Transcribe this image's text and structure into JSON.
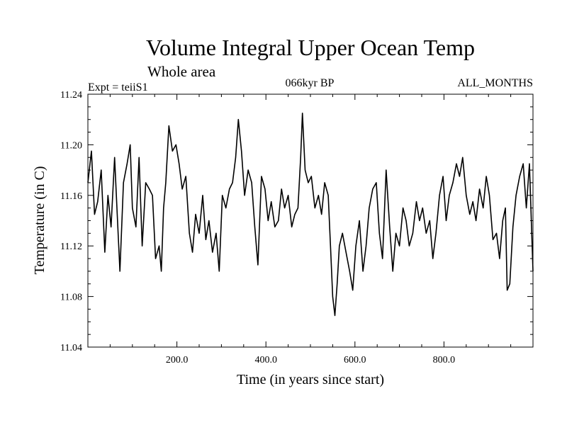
{
  "chart_data": {
    "type": "line",
    "title": "Volume Integral Upper Ocean Temp",
    "subtitle": "Whole area",
    "experiment": "Expt = teiiS1",
    "period": "066kyr BP",
    "months": "ALL_MONTHS",
    "xlabel": "Time (in years since start)",
    "ylabel": "Temperature (in C)",
    "xlim": [
      0,
      1000
    ],
    "ylim": [
      11.04,
      11.24
    ],
    "x_ticks": [
      200,
      400,
      600,
      800
    ],
    "x_tick_labels": [
      "200.0",
      "400.0",
      "600.0",
      "800.0"
    ],
    "y_ticks": [
      11.04,
      11.08,
      11.12,
      11.16,
      11.2,
      11.24
    ],
    "y_tick_labels": [
      "11.04",
      "11.08",
      "11.12",
      "11.16",
      "11.20",
      "11.24"
    ],
    "grid": false,
    "legend": "none",
    "series": [
      {
        "x": [
          0,
          8,
          15,
          22,
          30,
          38,
          45,
          52,
          60,
          66,
          72,
          80,
          88,
          95,
          100,
          108,
          115,
          122,
          130,
          138,
          145,
          152,
          160,
          165,
          170,
          175,
          182,
          190,
          198,
          205,
          212,
          220,
          228,
          235,
          242,
          250,
          258,
          265,
          272,
          280,
          288,
          295,
          302,
          310,
          318,
          325,
          332,
          338,
          345,
          352,
          360,
          368,
          375,
          382,
          390,
          398,
          405,
          412,
          420,
          428,
          435,
          442,
          450,
          458,
          465,
          472,
          478,
          482,
          488,
          495,
          502,
          510,
          518,
          525,
          532,
          540,
          545,
          550,
          555,
          560,
          565,
          572,
          580,
          588,
          595,
          602,
          610,
          618,
          625,
          632,
          640,
          648,
          655,
          662,
          670,
          678,
          685,
          692,
          700,
          708,
          715,
          722,
          730,
          738,
          745,
          752,
          760,
          768,
          775,
          782,
          790,
          798,
          805,
          812,
          820,
          828,
          835,
          842,
          850,
          858,
          865,
          872,
          880,
          888,
          895,
          902,
          910,
          918,
          925,
          932,
          938,
          942,
          948,
          955,
          962,
          970,
          978,
          985,
          992,
          1000
        ],
        "values": [
          11.17,
          11.195,
          11.145,
          11.155,
          11.18,
          11.115,
          11.16,
          11.135,
          11.19,
          11.145,
          11.1,
          11.17,
          11.185,
          11.2,
          11.15,
          11.135,
          11.19,
          11.12,
          11.17,
          11.165,
          11.16,
          11.11,
          11.12,
          11.1,
          11.15,
          11.17,
          11.215,
          11.195,
          11.2,
          11.185,
          11.165,
          11.175,
          11.13,
          11.115,
          11.145,
          11.13,
          11.16,
          11.125,
          11.14,
          11.115,
          11.13,
          11.1,
          11.16,
          11.15,
          11.165,
          11.17,
          11.19,
          11.22,
          11.195,
          11.16,
          11.18,
          11.17,
          11.135,
          11.105,
          11.175,
          11.165,
          11.14,
          11.155,
          11.135,
          11.14,
          11.165,
          11.15,
          11.16,
          11.135,
          11.145,
          11.15,
          11.19,
          11.225,
          11.18,
          11.17,
          11.175,
          11.15,
          11.16,
          11.145,
          11.17,
          11.16,
          11.12,
          11.08,
          11.065,
          11.09,
          11.12,
          11.13,
          11.115,
          11.1,
          11.085,
          11.12,
          11.14,
          11.1,
          11.12,
          11.15,
          11.165,
          11.17,
          11.13,
          11.11,
          11.18,
          11.135,
          11.1,
          11.13,
          11.12,
          11.15,
          11.14,
          11.12,
          11.13,
          11.155,
          11.14,
          11.15,
          11.13,
          11.14,
          11.11,
          11.13,
          11.16,
          11.175,
          11.14,
          11.16,
          11.17,
          11.185,
          11.175,
          11.19,
          11.16,
          11.145,
          11.155,
          11.14,
          11.165,
          11.15,
          11.175,
          11.16,
          11.125,
          11.13,
          11.11,
          11.14,
          11.15,
          11.085,
          11.09,
          11.135,
          11.16,
          11.175,
          11.185,
          11.15,
          11.185,
          11.1
        ]
      }
    ]
  }
}
